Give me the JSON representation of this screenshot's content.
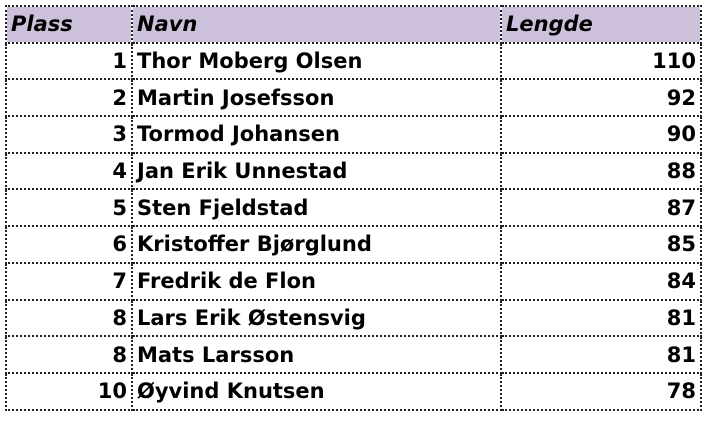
{
  "table": {
    "header": [
      "Plass",
      "Navn",
      "Lengde"
    ],
    "rows": [
      [
        1,
        "Thor Moberg Olsen",
        110
      ],
      [
        2,
        "Martin Josefsson",
        92
      ],
      [
        3,
        "Tormod Johansen",
        90
      ],
      [
        4,
        "Jan Erik Unnestad",
        88
      ],
      [
        5,
        "Sten Fjeldstad",
        87
      ],
      [
        6,
        "Kristoffer Bjørglund",
        85
      ],
      [
        7,
        "Fredrik de Flon",
        84
      ],
      [
        8,
        "Lars Erik Østensvig",
        81
      ],
      [
        8,
        "Mats Larsson",
        81
      ],
      [
        10,
        "Øyvind Knutsen",
        78
      ]
    ]
  }
}
